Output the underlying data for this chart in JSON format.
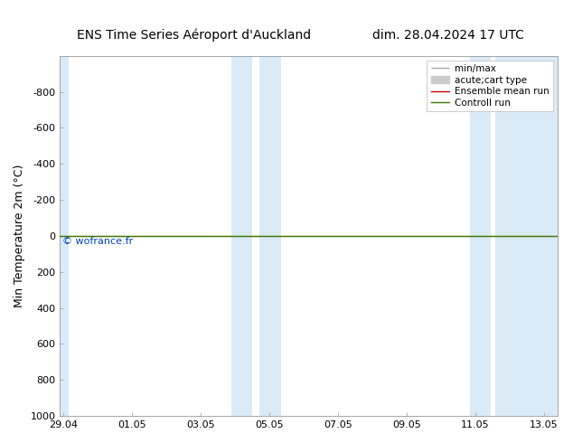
{
  "title_left": "ENS Time Series Aéroport d'Auckland",
  "title_right": "dim. 28.04.2024 17 UTC",
  "ylabel": "Min Temperature 2m (°C)",
  "ylim_bottom": 1000,
  "ylim_top": -1000,
  "yticks": [
    -800,
    -600,
    -400,
    -200,
    0,
    200,
    400,
    600,
    800,
    1000
  ],
  "xtick_labels": [
    "29.04",
    "01.05",
    "03.05",
    "05.05",
    "07.05",
    "09.05",
    "11.05",
    "13.05"
  ],
  "xtick_positions": [
    0,
    2,
    4,
    6,
    8,
    10,
    12,
    14
  ],
  "xlim": [
    -0.1,
    14.4
  ],
  "shaded_bands": [
    {
      "x_start": -0.1,
      "x_end": 0.15
    },
    {
      "x_start": 4.9,
      "x_end": 5.5
    },
    {
      "x_start": 5.7,
      "x_end": 6.35
    },
    {
      "x_start": 11.85,
      "x_end": 12.45
    },
    {
      "x_start": 12.6,
      "x_end": 14.4
    }
  ],
  "control_run_y": 0,
  "control_run_color": "#3a7a00",
  "ensemble_mean_color": "#cc0000",
  "background_color": "#ffffff",
  "plot_bg_color": "#ffffff",
  "shade_color": "#daeaf7",
  "watermark_text": "© wofrance.fr",
  "watermark_color": "#0044bb",
  "legend_minmax_color": "#aaaaaa",
  "legend_acutecart_color": "#cccccc",
  "font_size_title": 10,
  "font_size_axis_label": 9,
  "font_size_tick": 8,
  "font_size_legend": 7.5,
  "font_size_watermark": 8
}
